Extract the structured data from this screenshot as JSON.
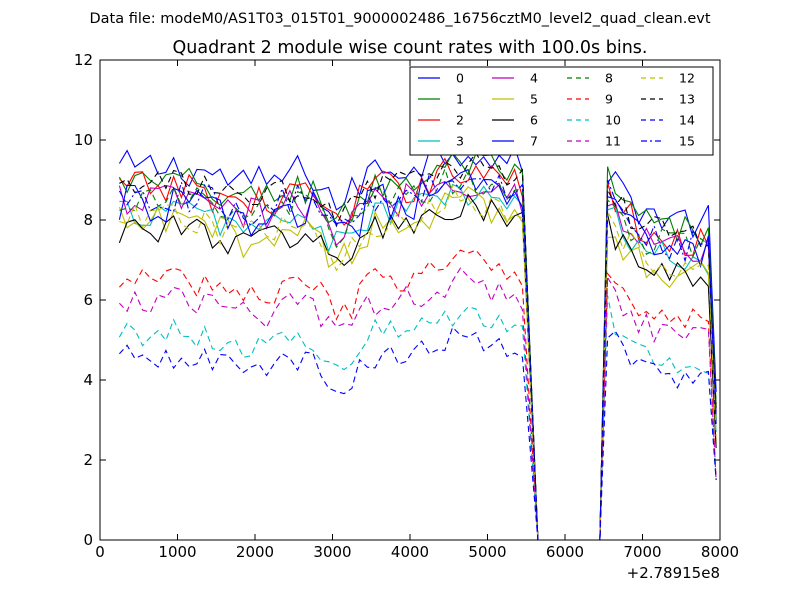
{
  "figure": {
    "suptitle": "Data file: modeM0/AS1T03_015T01_9000002486_16756cztM0_level2_quad_clean.evt"
  },
  "chart_data": {
    "type": "line",
    "title": "Quadrant 2 module wise count rates with 100.0s bins.",
    "xlabel": "",
    "ylabel": "",
    "x_offset_label": "+2.78915e8",
    "xlim": [
      0,
      8000
    ],
    "ylim": [
      0,
      12
    ],
    "x_ticks": [
      0,
      1000,
      2000,
      3000,
      4000,
      5000,
      6000,
      7000,
      8000
    ],
    "y_ticks": [
      0,
      2,
      4,
      6,
      8,
      10,
      12
    ],
    "x_tick_labels": [
      "0",
      "1000",
      "2000",
      "3000",
      "4000",
      "5000",
      "6000",
      "7000",
      "8000"
    ],
    "y_tick_labels": [
      "0",
      "2",
      "4",
      "6",
      "8",
      "10",
      "12"
    ],
    "grid": false,
    "legend_position": "top-right",
    "legend_columns": 4,
    "x_start": 250,
    "x_step": 100,
    "gap": {
      "low_at": [
        5650,
        6450
      ],
      "last_x": 7950
    },
    "series": [
      {
        "name": "0",
        "color": "#0000ff",
        "dash": "solid",
        "level": 9.3,
        "end": 7.9,
        "noise": 0.45
      },
      {
        "name": "1",
        "color": "#007f00",
        "dash": "solid",
        "level": 8.9,
        "end": 7.6,
        "noise": 0.45
      },
      {
        "name": "2",
        "color": "#ff0000",
        "dash": "solid",
        "level": 8.8,
        "end": 7.4,
        "noise": 0.45
      },
      {
        "name": "3",
        "color": "#00bfbf",
        "dash": "solid",
        "level": 8.2,
        "end": 6.9,
        "noise": 0.4
      },
      {
        "name": "4",
        "color": "#bf00bf",
        "dash": "solid",
        "level": 8.5,
        "end": 7.2,
        "noise": 0.45
      },
      {
        "name": "5",
        "color": "#bfbf00",
        "dash": "solid",
        "level": 7.9,
        "end": 6.6,
        "noise": 0.45
      },
      {
        "name": "6",
        "color": "#000000",
        "dash": "solid",
        "level": 7.8,
        "end": 6.5,
        "noise": 0.4
      },
      {
        "name": "7",
        "color": "#0000ff",
        "dash": "solid",
        "level": 8.4,
        "end": 7.1,
        "noise": 0.5
      },
      {
        "name": "8",
        "color": "#007f00",
        "dash": "dashed",
        "level": 8.5,
        "end": 7.2,
        "noise": 0.4
      },
      {
        "name": "9",
        "color": "#ff0000",
        "dash": "dashed",
        "level": 6.5,
        "end": 5.5,
        "noise": 0.35
      },
      {
        "name": "10",
        "color": "#00bfbf",
        "dash": "dashed",
        "level": 5.2,
        "end": 4.4,
        "noise": 0.35
      },
      {
        "name": "11",
        "color": "#bf00bf",
        "dash": "dashed",
        "level": 6.0,
        "end": 5.0,
        "noise": 0.35
      },
      {
        "name": "12",
        "color": "#bfbf00",
        "dash": "dashed",
        "level": 8.0,
        "end": 6.8,
        "noise": 0.4
      },
      {
        "name": "13",
        "color": "#000000",
        "dash": "dashed",
        "level": 8.9,
        "end": 7.5,
        "noise": 0.35
      },
      {
        "name": "14",
        "color": "#0000ff",
        "dash": "dashed",
        "level": 4.6,
        "end": 3.9,
        "noise": 0.3
      },
      {
        "name": "15",
        "color": "#0000ff",
        "dash": "dashdot",
        "level": 8.6,
        "end": 7.3,
        "noise": 0.4
      }
    ]
  }
}
